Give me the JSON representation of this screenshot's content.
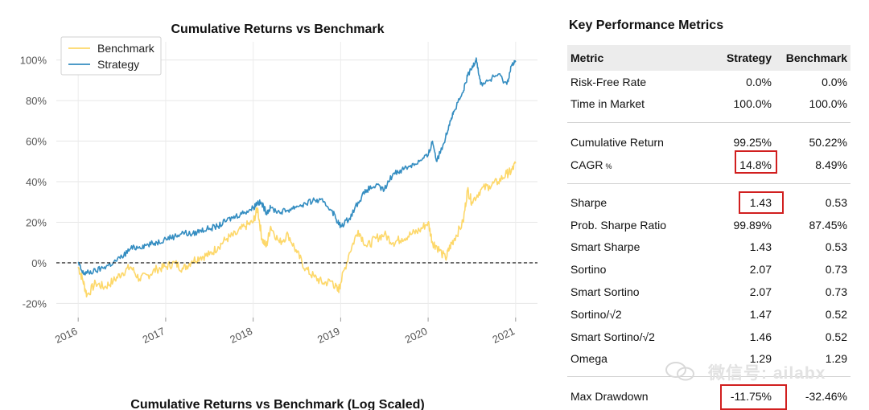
{
  "colors": {
    "benchmark": "#FDD86A",
    "strategy": "#348DC1",
    "highlight": "#D11F1F",
    "header_bg": "#ECECEC"
  },
  "chart_data": {
    "type": "line",
    "title": "Cumulative Returns vs Benchmark",
    "xlabel": "",
    "ylabel": "",
    "x_ticks": [
      "2016",
      "2017",
      "2018",
      "2019",
      "2020",
      "2021"
    ],
    "y_ticks": [
      "100%",
      "80%",
      "60%",
      "40%",
      "20%",
      "0%",
      "-20%"
    ],
    "ylim": [
      -23,
      105
    ],
    "xlim": [
      2015.75,
      2021.25
    ],
    "legend": "top-left",
    "baseline": 0,
    "series": [
      {
        "name": "Benchmark",
        "x": [
          2016.0,
          2016.05,
          2016.1,
          2016.2,
          2016.3,
          2016.4,
          2016.5,
          2016.6,
          2016.7,
          2016.8,
          2016.9,
          2017.0,
          2017.1,
          2017.2,
          2017.3,
          2017.4,
          2017.5,
          2017.6,
          2017.7,
          2017.8,
          2017.9,
          2018.0,
          2018.05,
          2018.1,
          2018.15,
          2018.2,
          2018.3,
          2018.4,
          2018.5,
          2018.6,
          2018.7,
          2018.8,
          2018.9,
          2018.97,
          2019.0,
          2019.1,
          2019.2,
          2019.3,
          2019.4,
          2019.5,
          2019.6,
          2019.7,
          2019.8,
          2019.9,
          2020.0,
          2020.05,
          2020.1,
          2020.2,
          2020.25,
          2020.3,
          2020.4,
          2020.45,
          2020.5,
          2020.6,
          2020.7,
          2020.8,
          2020.9,
          2020.95,
          2021.0
        ],
        "values": [
          -2,
          -8,
          -16,
          -10,
          -12,
          -9,
          -5,
          -2,
          -8,
          -6,
          -3,
          -2,
          0,
          -3,
          1,
          3,
          4,
          8,
          12,
          14,
          18,
          20,
          27,
          12,
          8,
          18,
          10,
          14,
          5,
          -3,
          -7,
          -10,
          -9,
          -14,
          -10,
          5,
          16,
          8,
          12,
          14,
          10,
          12,
          14,
          16,
          20,
          10,
          8,
          2,
          8,
          12,
          20,
          36,
          30,
          36,
          38,
          40,
          44,
          45,
          49
        ]
      },
      {
        "name": "Strategy",
        "x": [
          2016.0,
          2016.05,
          2016.1,
          2016.2,
          2016.3,
          2016.4,
          2016.5,
          2016.6,
          2016.7,
          2016.8,
          2016.9,
          2017.0,
          2017.1,
          2017.2,
          2017.3,
          2017.4,
          2017.5,
          2017.6,
          2017.7,
          2017.8,
          2017.9,
          2018.0,
          2018.05,
          2018.1,
          2018.15,
          2018.2,
          2018.3,
          2018.4,
          2018.5,
          2018.6,
          2018.7,
          2018.8,
          2018.9,
          2018.97,
          2019.0,
          2019.1,
          2019.2,
          2019.3,
          2019.4,
          2019.5,
          2019.6,
          2019.7,
          2019.8,
          2019.9,
          2020.0,
          2020.05,
          2020.1,
          2020.2,
          2020.25,
          2020.3,
          2020.4,
          2020.45,
          2020.5,
          2020.55,
          2020.6,
          2020.7,
          2020.8,
          2020.9,
          2020.95,
          2021.0
        ],
        "values": [
          0,
          -5,
          -5,
          -4,
          -2,
          0,
          3,
          7,
          8,
          9,
          10,
          12,
          13,
          15,
          14,
          16,
          17,
          18,
          21,
          23,
          25,
          27,
          30,
          29,
          25,
          27,
          25,
          26,
          28,
          29,
          31,
          30,
          26,
          20,
          18,
          22,
          30,
          36,
          38,
          36,
          44,
          46,
          48,
          50,
          53,
          60,
          50,
          62,
          70,
          75,
          84,
          92,
          96,
          101,
          88,
          90,
          93,
          88,
          97,
          99
        ]
      }
    ]
  },
  "bottom_chart_title": "Cumulative Returns vs Benchmark (Log Scaled)",
  "metrics": {
    "title": "Key Performance Metrics",
    "columns": {
      "metric": "Metric",
      "strategy": "Strategy",
      "benchmark": "Benchmark"
    },
    "rows": [
      {
        "name": "Risk-Free Rate",
        "strategy": "0.0%",
        "benchmark": "0.0%"
      },
      {
        "name": "Time in Market",
        "strategy": "100.0%",
        "benchmark": "100.0%"
      },
      {
        "name": "Cumulative Return",
        "strategy": "99.25%",
        "benchmark": "50.22%"
      },
      {
        "name": "CAGR",
        "unit": "%",
        "strategy": "14.8%",
        "benchmark": "8.49%"
      },
      {
        "name": "Sharpe",
        "strategy": "1.43",
        "benchmark": "0.53"
      },
      {
        "name": "Prob. Sharpe Ratio",
        "strategy": "99.89%",
        "benchmark": "87.45%"
      },
      {
        "name": "Smart Sharpe",
        "strategy": "1.43",
        "benchmark": "0.53"
      },
      {
        "name": "Sortino",
        "strategy": "2.07",
        "benchmark": "0.73"
      },
      {
        "name": "Smart Sortino",
        "strategy": "2.07",
        "benchmark": "0.73"
      },
      {
        "name": "Sortino/√2",
        "strategy": "1.47",
        "benchmark": "0.52"
      },
      {
        "name": "Smart Sortino/√2",
        "strategy": "1.46",
        "benchmark": "0.52"
      },
      {
        "name": "Omega",
        "strategy": "1.29",
        "benchmark": "1.29"
      },
      {
        "name": "Max Drawdown",
        "strategy": "-11.75%",
        "benchmark": "-32.46%"
      }
    ]
  },
  "watermark": {
    "text": "微信号: ailabx",
    "icon": "wechat-icon"
  }
}
